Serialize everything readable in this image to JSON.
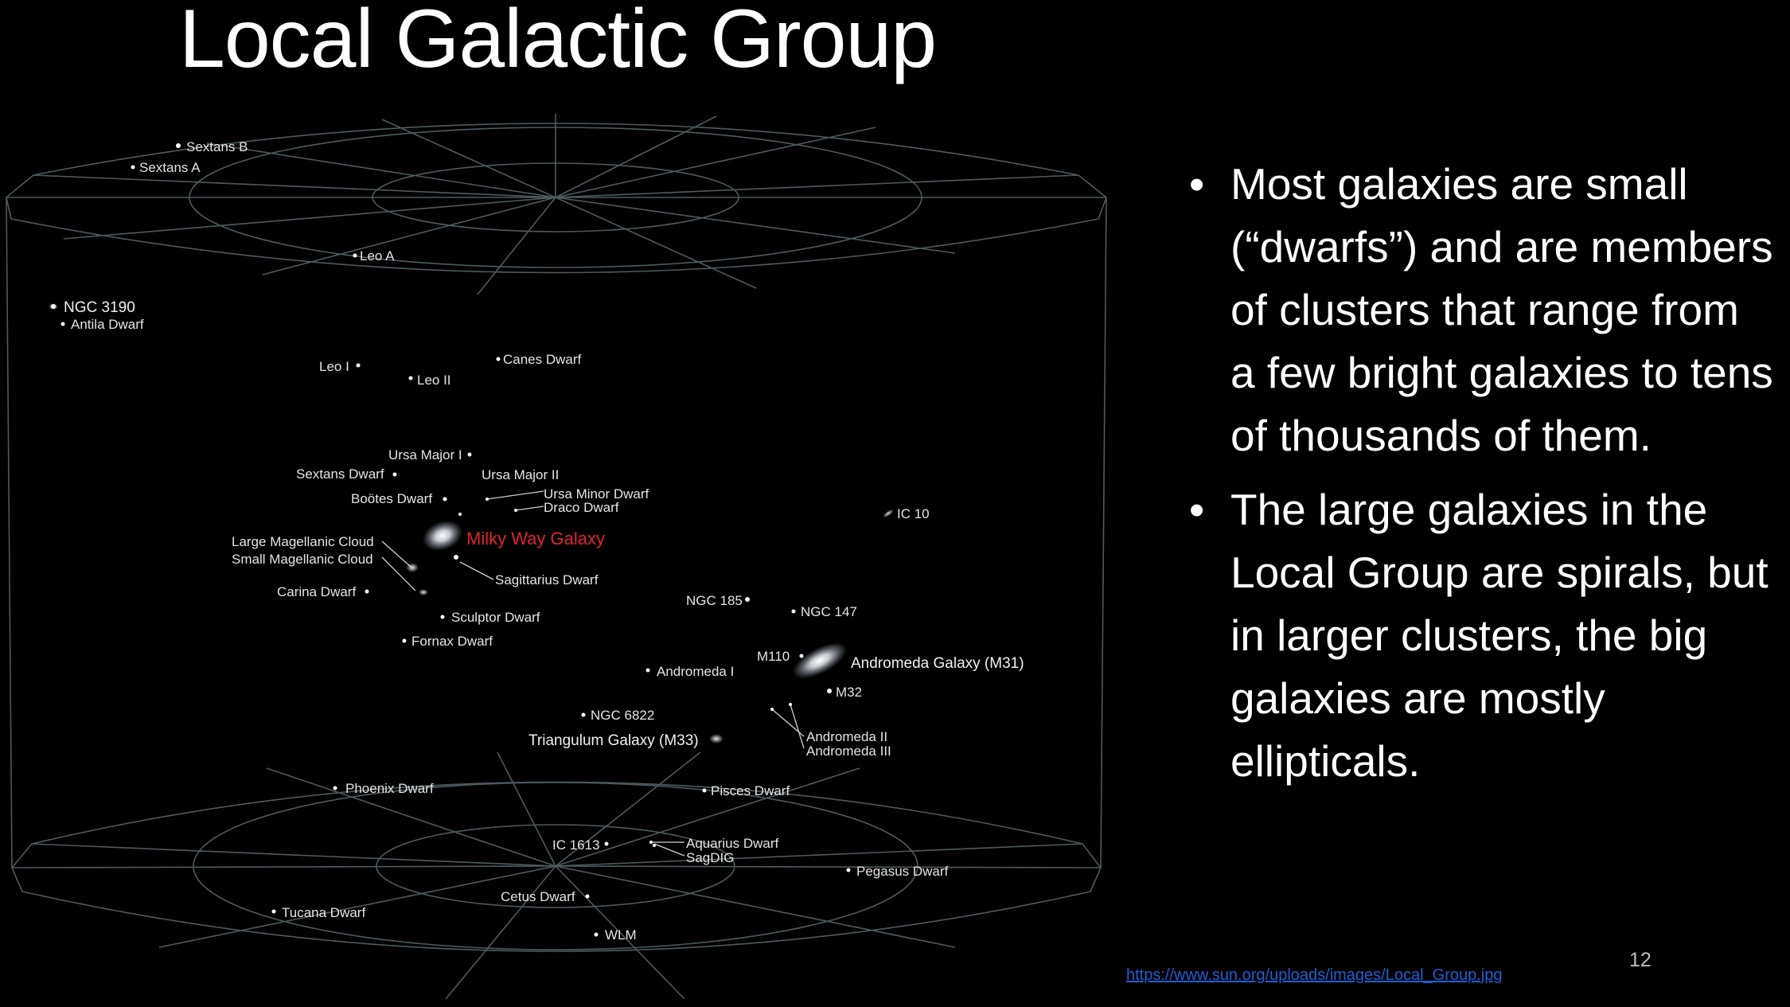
{
  "slide": {
    "title": "Local Galactic Group",
    "bullets": [
      "Most galaxies are small (“dwarfs”) and are members of clusters that range from a few bright galaxies to tens of thousands of them.",
      "The large galaxies in the Local Group are spirals, but in larger clusters, the big galaxies are mostly ellipticals."
    ],
    "bullet_symbol": "•",
    "source_link": "https://www.sun.org/uploads/images/Local_Group.jpg",
    "page_number": "12"
  },
  "diagram": {
    "highlight_color": "#e0262b",
    "grid_color": "#4e5a5e",
    "galaxies": {
      "sextans_b": "Sextans B",
      "sextans_a": "Sextans A",
      "leo_a": "Leo A",
      "ngc_3190": "NGC 3190",
      "antila_dwarf": "Antila Dwarf",
      "leo_i": "Leo I",
      "leo_ii": "Leo II",
      "canes_dwarf": "Canes Dwarf",
      "ursa_major_i": "Ursa Major I",
      "sextans_dwarf": "Sextans Dwarf",
      "ursa_major_ii": "Ursa Major II",
      "ursa_minor_dwarf": "Ursa Minor Dwarf",
      "draco_dwarf": "Draco Dwarf",
      "bootes_dwarf": "Boötes Dwarf",
      "milky_way": "Milky Way Galaxy",
      "lmc": "Large Magellanic Cloud",
      "smc": "Small Magellanic Cloud",
      "sagittarius_dwarf": "Sagittarius Dwarf",
      "carina_dwarf": "Carina Dwarf",
      "sculptor_dwarf": "Sculptor Dwarf",
      "fornax_dwarf": "Fornax Dwarf",
      "ic_10": "IC 10",
      "ngc_185": "NGC 185",
      "ngc_147": "NGC 147",
      "m110": "M110",
      "andromeda_galaxy": "Andromeda Galaxy (M31)",
      "m32": "M32",
      "andromeda_i": "Andromeda I",
      "ngc_6822": "NGC 6822",
      "andromeda_ii": "Andromeda II",
      "andromeda_iii": "Andromeda III",
      "triangulum": "Triangulum Galaxy (M33)",
      "phoenix_dwarf": "Phoenix Dwarf",
      "pisces_dwarf": "Pisces Dwarf",
      "ic_1613": "IC 1613",
      "aquarius_dwarf": "Aquarius Dwarf",
      "sagdig": "SagDIG",
      "pegasus_dwarf": "Pegasus Dwarf",
      "tucana_dwarf": "Tucana Dwarf",
      "cetus_dwarf": "Cetus Dwarf",
      "wlm": "WLM"
    }
  }
}
